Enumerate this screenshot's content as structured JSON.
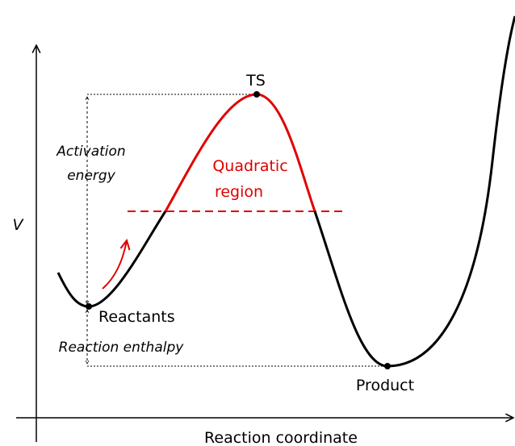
{
  "axes": {
    "y_label": "V",
    "x_label": "Reaction coordinate"
  },
  "points": {
    "ts": "TS",
    "reactants": "Reactants",
    "product": "Product"
  },
  "annotations": {
    "activation": [
      "Activation",
      "energy"
    ],
    "enthalpy": "Reaction enthalpy",
    "quadratic": [
      "Quadratic",
      "region"
    ]
  }
}
